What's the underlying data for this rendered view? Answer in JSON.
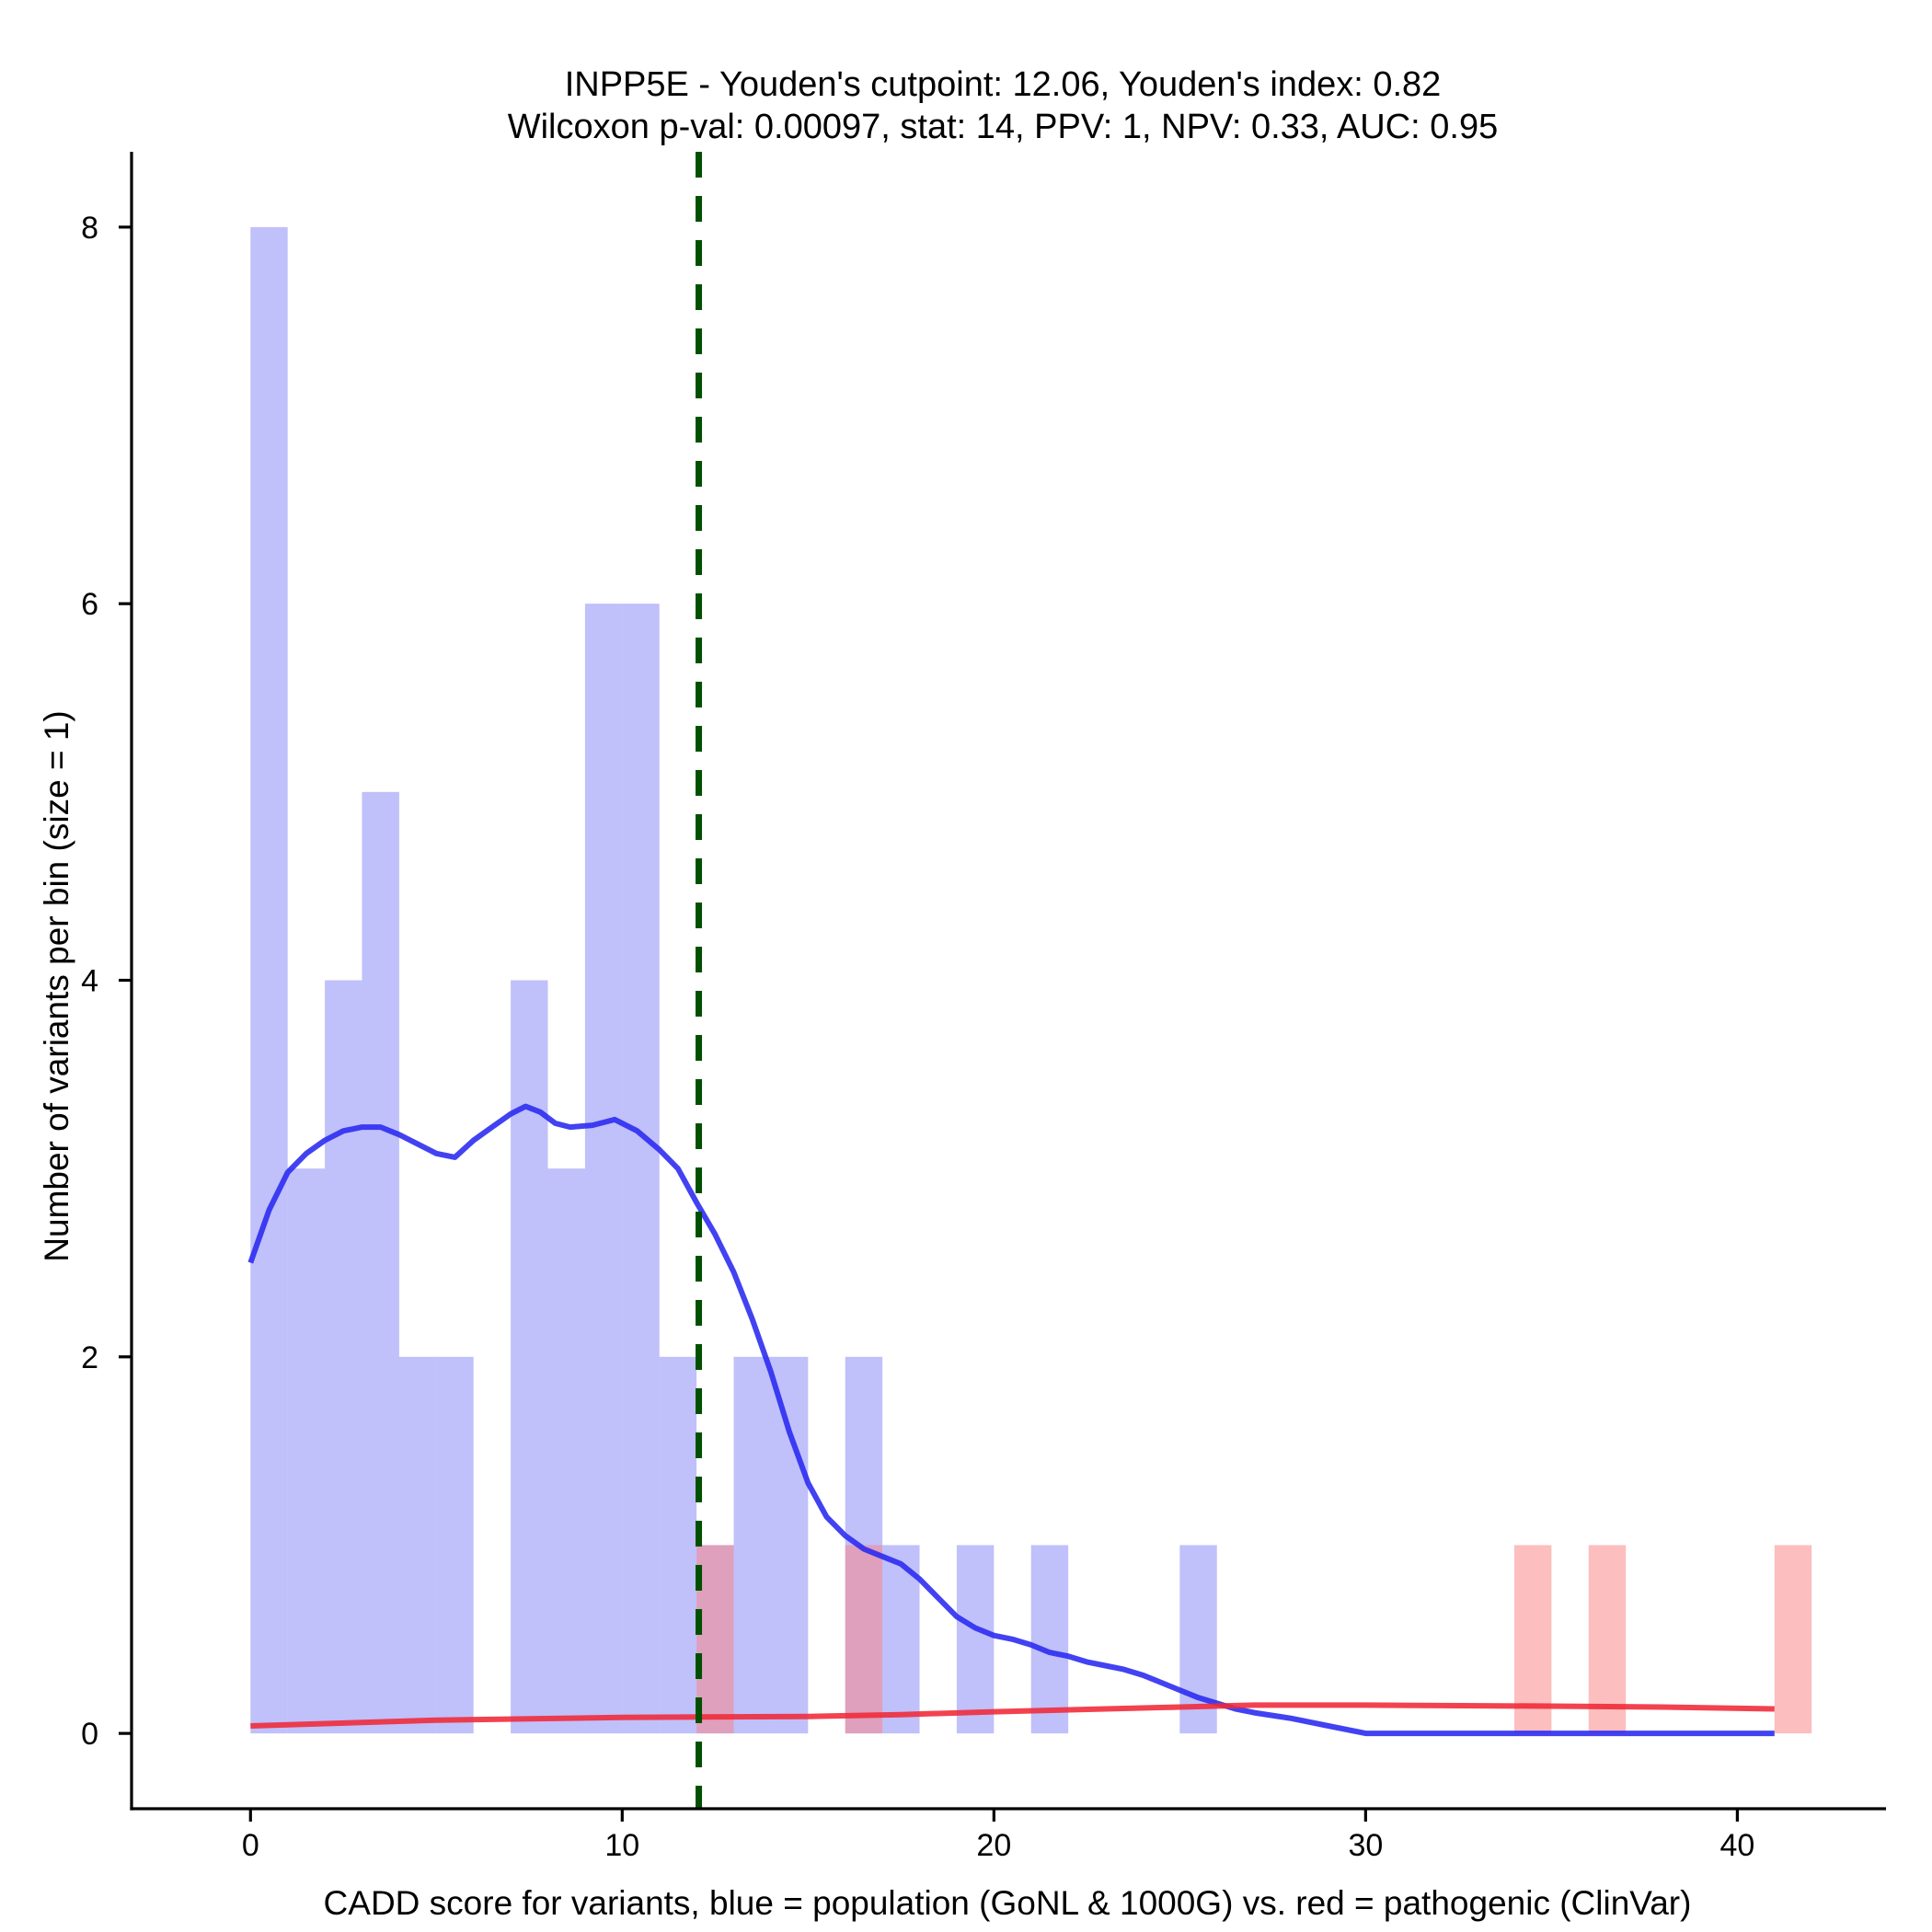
{
  "chart_data": {
    "type": "bar",
    "title_line1": "INPP5E - Youden's cutpoint: 12.06, Youden's index: 0.82",
    "title_line2": "Wilcoxon p-val: 0.00097, stat: 14, PPV: 1, NPV: 0.33, AUC: 0.95",
    "xlabel": "CADD score for variants, blue = population (GoNL & 1000G) vs. red = pathogenic (ClinVar)",
    "ylabel": "Number of variants per bin (size = 1)",
    "xlim": [
      -3.2,
      44.0
    ],
    "ylim": [
      -0.4,
      8.4
    ],
    "x_ticks": [
      0,
      10,
      20,
      30,
      40
    ],
    "y_ticks": [
      0,
      2,
      4,
      6,
      8
    ],
    "cutpoint": 12.06,
    "bin_width": 1,
    "series": [
      {
        "name": "population (GoNL & 1000G)",
        "color": "#0000ee",
        "bins": [
          {
            "x": 0,
            "count": 8
          },
          {
            "x": 1,
            "count": 3
          },
          {
            "x": 2,
            "count": 4
          },
          {
            "x": 3,
            "count": 5
          },
          {
            "x": 4,
            "count": 2
          },
          {
            "x": 5,
            "count": 2
          },
          {
            "x": 7,
            "count": 4
          },
          {
            "x": 8,
            "count": 3
          },
          {
            "x": 9,
            "count": 6
          },
          {
            "x": 10,
            "count": 6
          },
          {
            "x": 11,
            "count": 2
          },
          {
            "x": 12,
            "count": 1
          },
          {
            "x": 13,
            "count": 2
          },
          {
            "x": 14,
            "count": 2
          },
          {
            "x": 16,
            "count": 2
          },
          {
            "x": 17,
            "count": 1
          },
          {
            "x": 19,
            "count": 1
          },
          {
            "x": 21,
            "count": 1
          },
          {
            "x": 25,
            "count": 1
          }
        ],
        "density_curve": [
          [
            0,
            2.5
          ],
          [
            0.5,
            2.78
          ],
          [
            1,
            2.98
          ],
          [
            1.5,
            3.08
          ],
          [
            2,
            3.15
          ],
          [
            2.5,
            3.2
          ],
          [
            3,
            3.22
          ],
          [
            3.5,
            3.22
          ],
          [
            4,
            3.18
          ],
          [
            4.5,
            3.13
          ],
          [
            5,
            3.08
          ],
          [
            5.5,
            3.06
          ],
          [
            6,
            3.15
          ],
          [
            6.5,
            3.22
          ],
          [
            7,
            3.29
          ],
          [
            7.4,
            3.33
          ],
          [
            7.8,
            3.3
          ],
          [
            8.2,
            3.24
          ],
          [
            8.6,
            3.22
          ],
          [
            9.2,
            3.23
          ],
          [
            9.8,
            3.26
          ],
          [
            10.4,
            3.2
          ],
          [
            11,
            3.1
          ],
          [
            11.5,
            3.0
          ],
          [
            12,
            2.82
          ],
          [
            12.5,
            2.65
          ],
          [
            13,
            2.45
          ],
          [
            13.5,
            2.2
          ],
          [
            14,
            1.92
          ],
          [
            14.5,
            1.6
          ],
          [
            15,
            1.33
          ],
          [
            15.5,
            1.15
          ],
          [
            16,
            1.05
          ],
          [
            16.5,
            0.98
          ],
          [
            17,
            0.94
          ],
          [
            17.5,
            0.9
          ],
          [
            18,
            0.82
          ],
          [
            18.5,
            0.72
          ],
          [
            19,
            0.62
          ],
          [
            19.5,
            0.56
          ],
          [
            20,
            0.52
          ],
          [
            20.5,
            0.5
          ],
          [
            21,
            0.47
          ],
          [
            21.5,
            0.43
          ],
          [
            22,
            0.41
          ],
          [
            22.5,
            0.38
          ],
          [
            23,
            0.36
          ],
          [
            23.5,
            0.34
          ],
          [
            24,
            0.31
          ],
          [
            24.5,
            0.27
          ],
          [
            25,
            0.23
          ],
          [
            25.5,
            0.19
          ],
          [
            26,
            0.16
          ],
          [
            26.5,
            0.13
          ],
          [
            27,
            0.11
          ],
          [
            28,
            0.08
          ],
          [
            29,
            0.04
          ],
          [
            30,
            0.0
          ],
          [
            41,
            0.0
          ]
        ]
      },
      {
        "name": "pathogenic (ClinVar)",
        "color": "#ff0000",
        "bins": [
          {
            "x": 12,
            "count": 1
          },
          {
            "x": 16,
            "count": 1
          },
          {
            "x": 34,
            "count": 1
          },
          {
            "x": 36,
            "count": 1
          },
          {
            "x": 41,
            "count": 1
          }
        ],
        "density_curve": [
          [
            0,
            0.04
          ],
          [
            5,
            0.07
          ],
          [
            10,
            0.085
          ],
          [
            15,
            0.09
          ],
          [
            17.5,
            0.1
          ],
          [
            20,
            0.115
          ],
          [
            25,
            0.14
          ],
          [
            27,
            0.15
          ],
          [
            30,
            0.15
          ],
          [
            35,
            0.145
          ],
          [
            38,
            0.14
          ],
          [
            41,
            0.13
          ]
        ]
      }
    ]
  }
}
